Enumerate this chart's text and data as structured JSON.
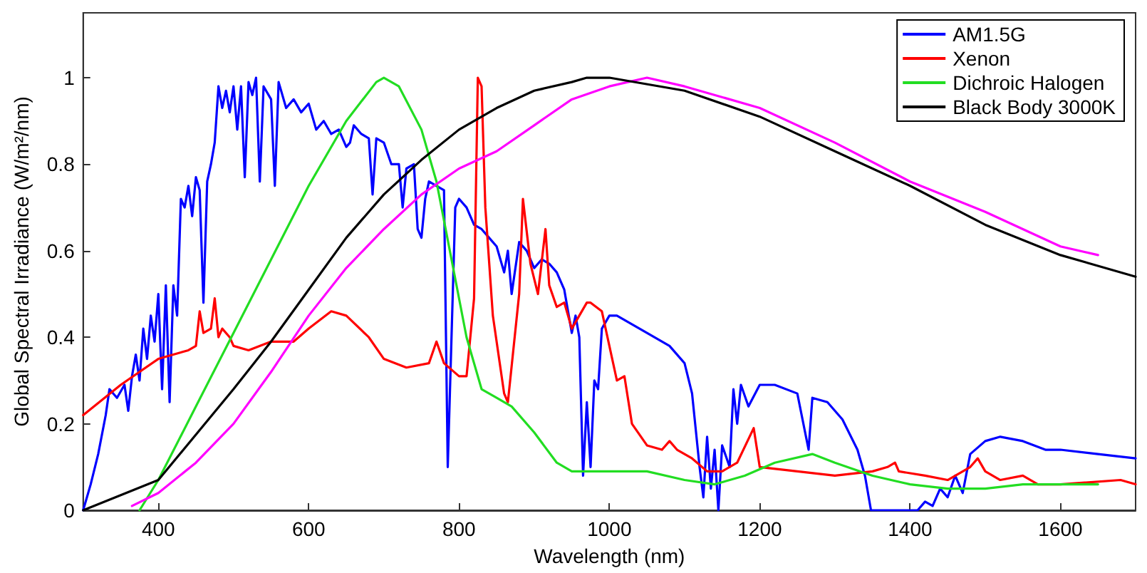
{
  "chart_data": {
    "type": "line",
    "xlabel": "Wavelength (nm)",
    "ylabel": "Global Spectral Irradiance (W/m²/nm)",
    "xlim": [
      300,
      1700
    ],
    "ylim": [
      0,
      1.15
    ],
    "xticks": [
      400,
      600,
      800,
      1000,
      1200,
      1400,
      1600
    ],
    "yticks": [
      0,
      0.2,
      0.4,
      0.6,
      0.8,
      1
    ],
    "grid": false,
    "legend": "top right",
    "marker": "none",
    "line_style": "solid",
    "series": [
      {
        "name": "AM1.5G",
        "color": "#0000ff",
        "x": [
          300,
          310,
          320,
          330,
          335,
          345,
          355,
          360,
          365,
          370,
          375,
          380,
          385,
          390,
          395,
          400,
          405,
          410,
          415,
          420,
          425,
          430,
          435,
          440,
          445,
          450,
          455,
          460,
          465,
          470,
          475,
          480,
          485,
          490,
          495,
          500,
          505,
          510,
          515,
          520,
          525,
          530,
          535,
          540,
          550,
          555,
          560,
          570,
          580,
          590,
          600,
          610,
          620,
          630,
          640,
          650,
          655,
          660,
          670,
          680,
          685,
          690,
          700,
          710,
          720,
          725,
          730,
          740,
          745,
          750,
          755,
          760,
          770,
          780,
          785,
          790,
          795,
          800,
          810,
          820,
          830,
          840,
          850,
          860,
          865,
          870,
          880,
          890,
          900,
          910,
          920,
          930,
          940,
          950,
          955,
          960,
          965,
          970,
          975,
          980,
          985,
          990,
          1000,
          1010,
          1050,
          1080,
          1100,
          1110,
          1120,
          1125,
          1130,
          1135,
          1140,
          1145,
          1150,
          1160,
          1165,
          1170,
          1175,
          1185,
          1200,
          1220,
          1250,
          1265,
          1270,
          1290,
          1310,
          1330,
          1340,
          1348,
          1410,
          1420,
          1430,
          1440,
          1450,
          1460,
          1470,
          1480,
          1500,
          1520,
          1550,
          1580,
          1600,
          1650,
          1700
        ],
        "values": [
          0,
          0.06,
          0.13,
          0.22,
          0.28,
          0.26,
          0.29,
          0.23,
          0.31,
          0.36,
          0.3,
          0.42,
          0.35,
          0.45,
          0.39,
          0.5,
          0.28,
          0.52,
          0.25,
          0.52,
          0.45,
          0.72,
          0.7,
          0.75,
          0.68,
          0.77,
          0.74,
          0.48,
          0.76,
          0.8,
          0.85,
          0.98,
          0.93,
          0.97,
          0.92,
          0.98,
          0.88,
          0.98,
          0.77,
          0.99,
          0.96,
          1,
          0.76,
          0.98,
          0.95,
          0.75,
          0.99,
          0.93,
          0.95,
          0.92,
          0.94,
          0.88,
          0.9,
          0.87,
          0.88,
          0.84,
          0.85,
          0.89,
          0.87,
          0.86,
          0.73,
          0.86,
          0.85,
          0.8,
          0.8,
          0.7,
          0.79,
          0.8,
          0.65,
          0.63,
          0.72,
          0.76,
          0.75,
          0.74,
          0.1,
          0.4,
          0.7,
          0.72,
          0.7,
          0.66,
          0.65,
          0.63,
          0.61,
          0.55,
          0.6,
          0.5,
          0.62,
          0.6,
          0.56,
          0.58,
          0.57,
          0.55,
          0.51,
          0.41,
          0.45,
          0.4,
          0.08,
          0.25,
          0.1,
          0.3,
          0.28,
          0.42,
          0.45,
          0.45,
          0.41,
          0.38,
          0.34,
          0.27,
          0.1,
          0.03,
          0.17,
          0.05,
          0.14,
          0,
          0.15,
          0.1,
          0.28,
          0.2,
          0.29,
          0.24,
          0.29,
          0.29,
          0.27,
          0.14,
          0.26,
          0.25,
          0.21,
          0.14,
          0.08,
          0,
          0,
          0.02,
          0.01,
          0.05,
          0.03,
          0.08,
          0.04,
          0.13,
          0.16,
          0.17,
          0.16,
          0.14,
          0.14,
          0.13,
          0.12
        ]
      },
      {
        "name": "Xenon",
        "color": "#ff0000",
        "x": [
          300,
          350,
          400,
          440,
          450,
          455,
          460,
          470,
          475,
          480,
          485,
          495,
          500,
          520,
          550,
          580,
          600,
          630,
          650,
          680,
          700,
          730,
          760,
          770,
          780,
          800,
          810,
          820,
          825,
          830,
          835,
          845,
          860,
          865,
          880,
          885,
          895,
          905,
          915,
          920,
          930,
          940,
          950,
          960,
          970,
          975,
          990,
          1010,
          1020,
          1030,
          1050,
          1070,
          1080,
          1090,
          1110,
          1130,
          1150,
          1170,
          1192,
          1200,
          1250,
          1300,
          1350,
          1370,
          1380,
          1385,
          1420,
          1450,
          1480,
          1490,
          1500,
          1520,
          1550,
          1570,
          1600,
          1680,
          1700
        ],
        "values": [
          0.22,
          0.29,
          0.35,
          0.37,
          0.38,
          0.46,
          0.41,
          0.42,
          0.49,
          0.4,
          0.42,
          0.4,
          0.38,
          0.37,
          0.39,
          0.39,
          0.42,
          0.46,
          0.45,
          0.4,
          0.35,
          0.33,
          0.34,
          0.39,
          0.34,
          0.31,
          0.31,
          0.49,
          1,
          0.98,
          0.7,
          0.45,
          0.27,
          0.25,
          0.5,
          0.72,
          0.57,
          0.5,
          0.65,
          0.52,
          0.47,
          0.48,
          0.42,
          0.45,
          0.48,
          0.48,
          0.46,
          0.3,
          0.31,
          0.2,
          0.15,
          0.14,
          0.16,
          0.14,
          0.12,
          0.09,
          0.09,
          0.11,
          0.19,
          0.1,
          0.09,
          0.08,
          0.09,
          0.1,
          0.11,
          0.09,
          0.08,
          0.07,
          0.1,
          0.12,
          0.09,
          0.07,
          0.08,
          0.06,
          0.06,
          0.07,
          0.06
        ]
      },
      {
        "name": "Dichroic Halogen",
        "color": "#22dd22",
        "x": [
          375,
          400,
          450,
          500,
          550,
          600,
          650,
          690,
          700,
          720,
          750,
          770,
          790,
          810,
          830,
          850,
          870,
          900,
          930,
          950,
          1000,
          1050,
          1100,
          1140,
          1180,
          1220,
          1270,
          1300,
          1350,
          1400,
          1450,
          1500,
          1550,
          1600,
          1650
        ],
        "values": [
          0,
          0.07,
          0.24,
          0.41,
          0.58,
          0.75,
          0.9,
          0.99,
          1,
          0.98,
          0.88,
          0.76,
          0.58,
          0.4,
          0.28,
          0.26,
          0.24,
          0.18,
          0.11,
          0.09,
          0.09,
          0.09,
          0.07,
          0.06,
          0.08,
          0.11,
          0.13,
          0.11,
          0.08,
          0.06,
          0.05,
          0.05,
          0.06,
          0.06,
          0.06
        ]
      },
      {
        "color": "#ff00ff",
        "x": [
          365,
          400,
          450,
          500,
          550,
          600,
          650,
          700,
          750,
          800,
          850,
          900,
          950,
          1000,
          1050,
          1100,
          1200,
          1300,
          1400,
          1500,
          1600,
          1650
        ],
        "values": [
          0.01,
          0.04,
          0.11,
          0.2,
          0.32,
          0.45,
          0.56,
          0.65,
          0.73,
          0.79,
          0.83,
          0.89,
          0.95,
          0.98,
          1,
          0.98,
          0.93,
          0.85,
          0.76,
          0.69,
          0.61,
          0.59
        ]
      },
      {
        "name": "Black Body 3000K",
        "color": "#000000",
        "x": [
          300,
          400,
          500,
          550,
          600,
          650,
          700,
          750,
          800,
          850,
          900,
          950,
          970,
          1000,
          1100,
          1200,
          1300,
          1400,
          1500,
          1600,
          1700
        ],
        "values": [
          0,
          0.07,
          0.28,
          0.39,
          0.51,
          0.63,
          0.73,
          0.81,
          0.88,
          0.93,
          0.97,
          0.99,
          1,
          1,
          0.97,
          0.91,
          0.83,
          0.75,
          0.66,
          0.59,
          0.54
        ]
      }
    ]
  }
}
